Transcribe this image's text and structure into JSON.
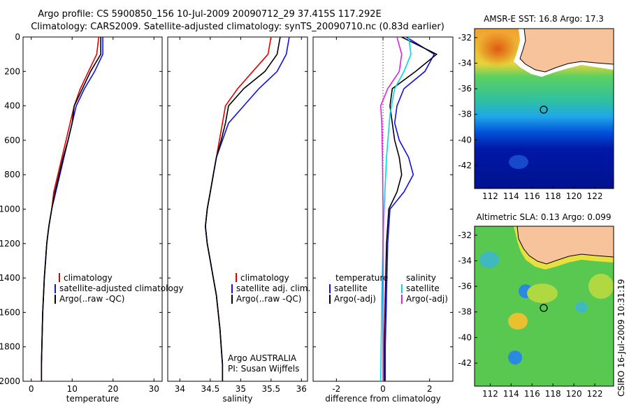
{
  "header": {
    "line1": "Argo profile: CS 5900850_156 10-Jul-2009 20090712_29 37.415S 117.292E",
    "line2": "Climatology: CARS2009. Satellite-adjusted climatology: synTS_20090710.nc (0.83d earlier)"
  },
  "colors": {
    "climatology": "#e00000",
    "satellite": "#1010e0",
    "argo": "#000000",
    "sat_salinity": "#00d8e8",
    "argo_adj_salinity": "#e020e0",
    "land": "#f6c39b"
  },
  "credit": "CSIRO 16-Jul-2009 10:31:19",
  "chart_data": [
    {
      "type": "line",
      "xlabel": "temperature",
      "ylim": [
        2000,
        0
      ],
      "xlim": [
        -2,
        32
      ],
      "yticks": [
        "0",
        "200",
        "400",
        "600",
        "800",
        "1000",
        "1200",
        "1400",
        "1600",
        "1800",
        "2000"
      ],
      "xticks": [
        "0",
        "10",
        "20",
        "30"
      ],
      "legend": [
        "climatology",
        "satellite-adjusted climatology",
        "Argo(..raw -QC)"
      ],
      "series": [
        {
          "name": "climatology",
          "color": "#e00000",
          "points": [
            [
              16.5,
              0
            ],
            [
              16,
              100
            ],
            [
              14,
              200
            ],
            [
              12,
              300
            ],
            [
              10.5,
              400
            ],
            [
              9.5,
              500
            ],
            [
              8.5,
              600
            ],
            [
              7.5,
              700
            ],
            [
              6.5,
              800
            ],
            [
              5.5,
              900
            ],
            [
              5,
              1000
            ],
            [
              4.3,
              1100
            ],
            [
              3.8,
              1200
            ],
            [
              3.5,
              1300
            ],
            [
              3.2,
              1400
            ],
            [
              3,
              1500
            ],
            [
              2.8,
              1600
            ],
            [
              2.7,
              1700
            ],
            [
              2.6,
              1800
            ],
            [
              2.5,
              1900
            ],
            [
              2.5,
              2000
            ]
          ]
        },
        {
          "name": "satellite-adjusted climatology",
          "color": "#1010e0",
          "points": [
            [
              17.5,
              0
            ],
            [
              17.5,
              100
            ],
            [
              15.5,
              200
            ],
            [
              13,
              300
            ],
            [
              11,
              400
            ],
            [
              10,
              500
            ],
            [
              9,
              600
            ],
            [
              8,
              700
            ],
            [
              7,
              800
            ],
            [
              6,
              900
            ],
            [
              5,
              1000
            ],
            [
              4.3,
              1100
            ],
            [
              3.8,
              1200
            ],
            [
              3.5,
              1300
            ],
            [
              3.2,
              1400
            ],
            [
              3,
              1500
            ],
            [
              2.8,
              1600
            ],
            [
              2.7,
              1700
            ],
            [
              2.6,
              1800
            ],
            [
              2.5,
              1900
            ],
            [
              2.5,
              2000
            ]
          ]
        },
        {
          "name": "Argo(..raw -QC)",
          "color": "#000000",
          "points": [
            [
              17,
              0
            ],
            [
              17,
              100
            ],
            [
              14.5,
              200
            ],
            [
              12.5,
              300
            ],
            [
              10.5,
              400
            ],
            [
              10,
              500
            ],
            [
              9,
              600
            ],
            [
              7.8,
              700
            ],
            [
              6.8,
              800
            ],
            [
              5.8,
              900
            ],
            [
              5,
              1000
            ],
            [
              4.3,
              1100
            ],
            [
              3.8,
              1200
            ],
            [
              3.5,
              1300
            ],
            [
              3.2,
              1400
            ],
            [
              3,
              1500
            ],
            [
              2.8,
              1600
            ],
            [
              2.7,
              1700
            ],
            [
              2.6,
              1800
            ],
            [
              2.5,
              1900
            ],
            [
              2.5,
              2000
            ]
          ]
        }
      ]
    },
    {
      "type": "line",
      "xlabel": "salinity",
      "ylim": [
        2000,
        0
      ],
      "xlim": [
        33.8,
        36.1
      ],
      "xticks": [
        "34",
        "34.5",
        "35",
        "35.5",
        "36"
      ],
      "legend": [
        "climatology",
        "satellite adj. clim.",
        "Argo(..raw -QC)"
      ],
      "annotation": [
        "Argo AUSTRALIA",
        "PI: Susan Wijffels"
      ],
      "series": [
        {
          "name": "climatology",
          "color": "#e00000",
          "points": [
            [
              35.5,
              0
            ],
            [
              35.45,
              100
            ],
            [
              35.2,
              200
            ],
            [
              34.95,
              300
            ],
            [
              34.75,
              400
            ],
            [
              34.7,
              500
            ],
            [
              34.65,
              600
            ],
            [
              34.6,
              700
            ],
            [
              34.55,
              800
            ],
            [
              34.5,
              900
            ],
            [
              34.45,
              1000
            ],
            [
              34.42,
              1100
            ],
            [
              34.45,
              1200
            ],
            [
              34.5,
              1300
            ],
            [
              34.55,
              1400
            ],
            [
              34.6,
              1500
            ],
            [
              34.63,
              1600
            ],
            [
              34.66,
              1700
            ],
            [
              34.68,
              1800
            ],
            [
              34.7,
              1900
            ],
            [
              34.7,
              2000
            ]
          ]
        },
        {
          "name": "satellite adj. clim.",
          "color": "#1010e0",
          "points": [
            [
              35.8,
              0
            ],
            [
              35.75,
              100
            ],
            [
              35.6,
              200
            ],
            [
              35.3,
              300
            ],
            [
              35.05,
              400
            ],
            [
              34.8,
              500
            ],
            [
              34.7,
              600
            ],
            [
              34.6,
              700
            ],
            [
              34.55,
              800
            ],
            [
              34.5,
              900
            ],
            [
              34.45,
              1000
            ],
            [
              34.42,
              1100
            ],
            [
              34.45,
              1200
            ],
            [
              34.5,
              1300
            ],
            [
              34.55,
              1400
            ],
            [
              34.6,
              1500
            ],
            [
              34.63,
              1600
            ],
            [
              34.66,
              1700
            ],
            [
              34.68,
              1800
            ],
            [
              34.7,
              1900
            ],
            [
              34.7,
              2000
            ]
          ]
        },
        {
          "name": "Argo(..raw -QC)",
          "color": "#000000",
          "points": [
            [
              35.65,
              0
            ],
            [
              35.6,
              100
            ],
            [
              35.4,
              200
            ],
            [
              35.05,
              300
            ],
            [
              34.8,
              400
            ],
            [
              34.75,
              500
            ],
            [
              34.68,
              600
            ],
            [
              34.6,
              700
            ],
            [
              34.55,
              800
            ],
            [
              34.5,
              900
            ],
            [
              34.45,
              1000
            ],
            [
              34.42,
              1100
            ],
            [
              34.45,
              1200
            ],
            [
              34.5,
              1300
            ],
            [
              34.55,
              1400
            ],
            [
              34.6,
              1500
            ],
            [
              34.63,
              1600
            ],
            [
              34.66,
              1700
            ],
            [
              34.68,
              1800
            ],
            [
              34.7,
              1900
            ],
            [
              34.7,
              2000
            ]
          ]
        }
      ]
    },
    {
      "type": "line",
      "xlabel": "difference from climatology",
      "ylim": [
        2000,
        0
      ],
      "xlim": [
        -3,
        3
      ],
      "xticks": [
        "-2",
        "0",
        "2"
      ],
      "legend_headers": [
        "temperature",
        "salinity"
      ],
      "legend": [
        "satellite",
        "Argo(-adj)",
        "satellite",
        "Argo(-adj)"
      ],
      "series": [
        {
          "name": "satellite",
          "group": "temperature",
          "color": "#1010e0",
          "points": [
            [
              1,
              0
            ],
            [
              2.2,
              100
            ],
            [
              1.8,
              200
            ],
            [
              0.9,
              300
            ],
            [
              0.6,
              400
            ],
            [
              0.5,
              500
            ],
            [
              0.7,
              600
            ],
            [
              1.1,
              700
            ],
            [
              1.3,
              800
            ],
            [
              0.9,
              900
            ],
            [
              0.3,
              1000
            ],
            [
              0.2,
              1200
            ],
            [
              0.15,
              1500
            ],
            [
              0.1,
              1800
            ],
            [
              0.1,
              2000
            ]
          ]
        },
        {
          "name": "Argo(-adj)",
          "group": "temperature",
          "color": "#000000",
          "points": [
            [
              0.8,
              0
            ],
            [
              2.3,
              100
            ],
            [
              1.4,
              200
            ],
            [
              0.4,
              300
            ],
            [
              0.3,
              400
            ],
            [
              0.4,
              500
            ],
            [
              0.5,
              600
            ],
            [
              0.7,
              700
            ],
            [
              0.8,
              800
            ],
            [
              0.6,
              900
            ],
            [
              0.25,
              1000
            ],
            [
              0.15,
              1200
            ],
            [
              0.1,
              1500
            ],
            [
              0.05,
              1800
            ],
            [
              0.05,
              2000
            ]
          ]
        },
        {
          "name": "satellite",
          "group": "salinity",
          "color": "#00d8e8",
          "points": [
            [
              1.1,
              0
            ],
            [
              1.2,
              100
            ],
            [
              0.9,
              200
            ],
            [
              0.5,
              300
            ],
            [
              0.3,
              450
            ],
            [
              0.15,
              700
            ],
            [
              0.05,
              1000
            ],
            [
              0,
              1200
            ],
            [
              -0.05,
              1500
            ],
            [
              -0.1,
              2000
            ]
          ]
        },
        {
          "name": "Argo(-adj)",
          "group": "salinity",
          "color": "#e020e0",
          "points": [
            [
              0.6,
              0
            ],
            [
              0.8,
              100
            ],
            [
              0.7,
              200
            ],
            [
              0.2,
              300
            ],
            [
              -0.1,
              400
            ],
            [
              -0.05,
              500
            ],
            [
              -0.02,
              700
            ],
            [
              0,
              1000
            ],
            [
              0,
              1500
            ],
            [
              0,
              2000
            ]
          ]
        }
      ]
    },
    {
      "type": "heatmap",
      "title": "AMSR-E SST: 16.8 Argo: 17.3",
      "xticks": [
        "112",
        "114",
        "116",
        "118",
        "120",
        "122"
      ],
      "yticks": [
        "-32",
        "-34",
        "-36",
        "-38",
        "-40",
        "-42"
      ],
      "argo_position": [
        117.29,
        -37.42
      ]
    },
    {
      "type": "heatmap",
      "title": "Altimetric SLA: 0.13 Argo: 0.099",
      "xticks": [
        "112",
        "114",
        "116",
        "118",
        "120",
        "122"
      ],
      "yticks": [
        "-32",
        "-34",
        "-36",
        "-38",
        "-40",
        "-42"
      ],
      "argo_position": [
        117.29,
        -37.42
      ]
    }
  ]
}
